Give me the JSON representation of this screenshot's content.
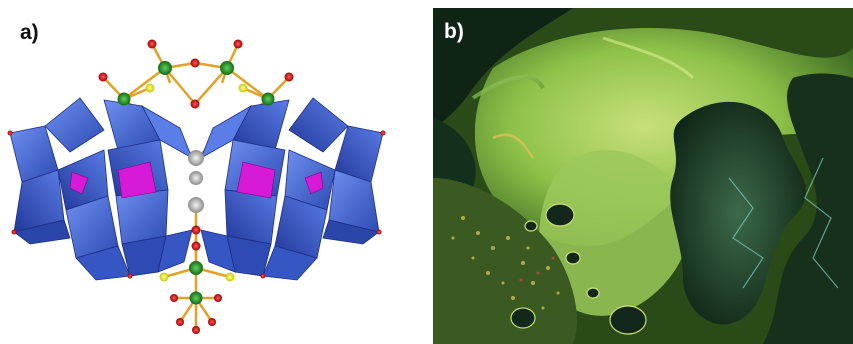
{
  "figure": {
    "panel_a": {
      "label": "a)"
    },
    "panel_b": {
      "label": "b)"
    }
  },
  "colors": {
    "polyhedra": "#3f63d6",
    "polyhedra_dark": "#2a46a8",
    "magenta_units": "#d61ad6",
    "green_atoms": "#1f8a1f",
    "red_atoms": "#d01010",
    "yellow_atoms": "#f1f12a",
    "grey_atoms": "#b8b8b8",
    "bonds": "#e2a227",
    "texture_green": "#8fc24a"
  },
  "icons": {
    "panel_a": "polyhedral-structure-model",
    "panel_b": "polarized-micrograph-texture"
  }
}
